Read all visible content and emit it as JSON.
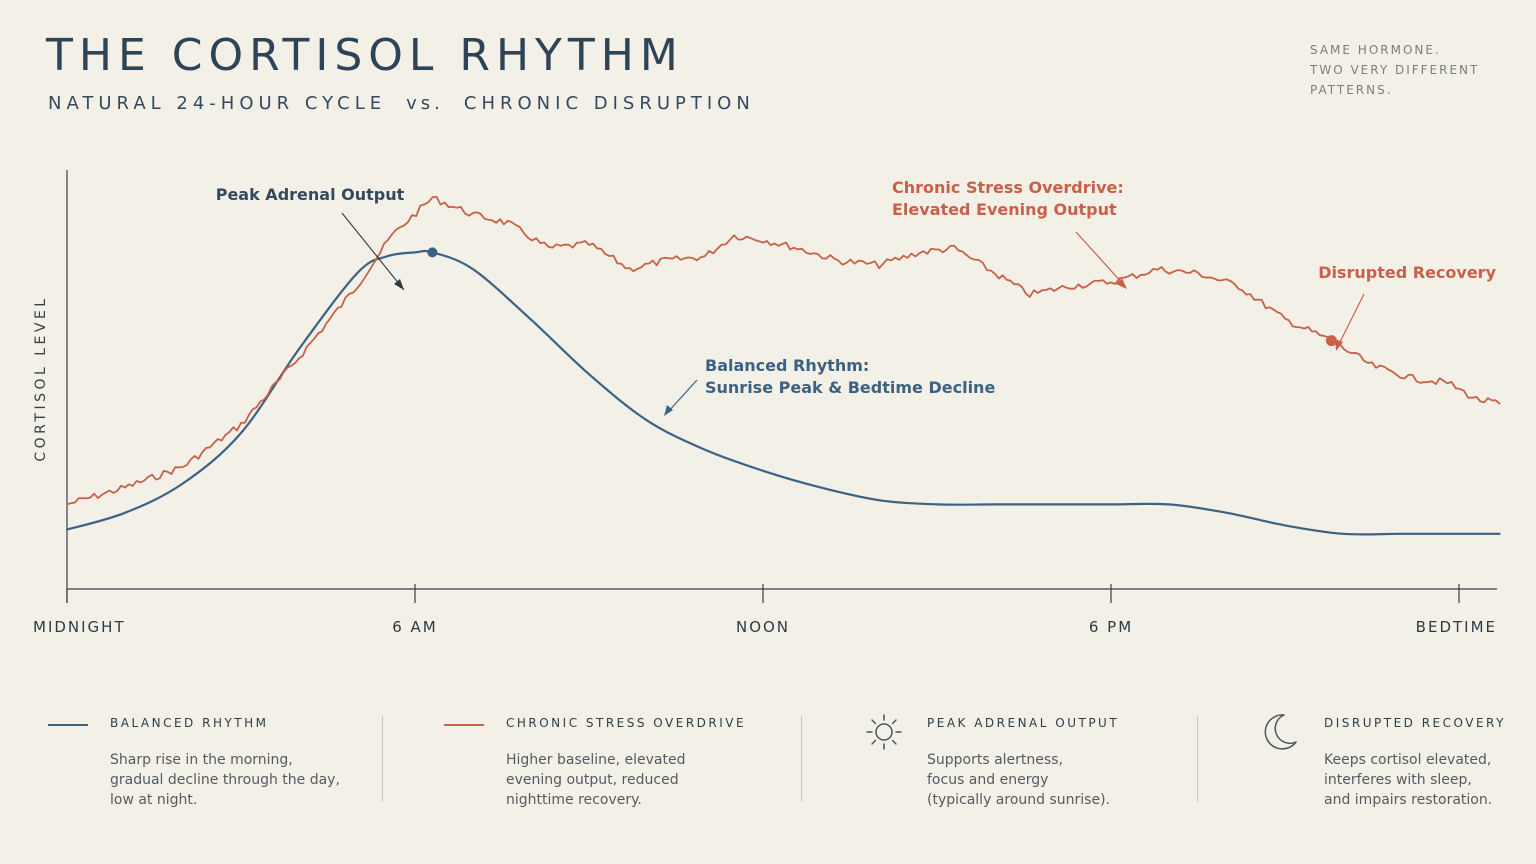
{
  "header": {
    "title": "THE CORTISOL RHYTHM",
    "subtitle_left": "NATURAL 24-HOUR CYCLE",
    "subtitle_vs": "vs.",
    "subtitle_right": "CHRONIC DISRUPTION",
    "tagline": [
      "SAME HORMONE.",
      "TWO VERY DIFFERENT",
      "PATTERNS."
    ]
  },
  "colors": {
    "balanced": "#3c6283",
    "chronic": "#c8604a",
    "axis": "#3a3f44",
    "background": "#f3f0e7"
  },
  "chart_data": {
    "type": "line",
    "ylabel": "CORTISOL LEVEL",
    "xlabel": "",
    "x_ticks": [
      "MIDNIGHT",
      "6 AM",
      "NOON",
      "6 PM",
      "BEDTIME"
    ],
    "x_tick_hours": [
      0,
      6,
      12,
      18,
      24
    ],
    "xlim": [
      0,
      24.7
    ],
    "ylim": [
      0,
      100
    ],
    "grid": false,
    "series": [
      {
        "name": "BALANCED RHYTHM",
        "color": "#3c6283",
        "x": [
          0,
          1,
          2,
          3,
          4,
          5,
          5.5,
          6,
          6.3,
          7,
          8,
          9,
          10,
          11,
          12,
          13,
          14,
          15,
          16,
          17,
          18,
          19,
          20,
          21,
          22,
          23,
          24,
          24.7
        ],
        "y": [
          7,
          11,
          18,
          30,
          50,
          68,
          72,
          73,
          73,
          69,
          57,
          44,
          33,
          26,
          21,
          17,
          14,
          13,
          13,
          13,
          13,
          13,
          11,
          8,
          6,
          6,
          6,
          6
        ]
      },
      {
        "name": "CHRONIC STRESS OVERDRIVE",
        "color": "#c8604a",
        "x": [
          0,
          1,
          2,
          3,
          4,
          5,
          5.6,
          6.3,
          7,
          7.6,
          8.3,
          9,
          9.7,
          10.3,
          11,
          11.5,
          12,
          12.6,
          13.3,
          14,
          14.7,
          15.3,
          16,
          16.6,
          17.3,
          18,
          18.3,
          18.8,
          19.5,
          20.2,
          21,
          21.8,
          22.5,
          23.2,
          23.8,
          24.3,
          24.7
        ],
        "y": [
          13,
          17,
          22,
          32,
          48,
          65,
          77,
          86,
          82,
          80,
          74,
          75,
          69,
          71,
          72,
          77,
          76,
          74,
          71,
          70,
          73,
          74,
          68,
          63,
          65,
          66,
          67,
          69,
          68,
          65,
          57,
          52,
          46,
          43,
          42,
          38,
          37
        ]
      }
    ],
    "annotations": [
      {
        "text": "Peak Adrenal Output",
        "series": "BALANCED RHYTHM",
        "x": 6.3,
        "y": 73
      },
      {
        "text": "Balanced Rhythm:\nSunrise Peak & Bedtime Decline",
        "series": "BALANCED RHYTHM",
        "x": 10.3,
        "y": 41
      },
      {
        "text": "Chronic Stress Overdrive:\nElevated Evening Output",
        "series": "CHRONIC STRESS OVERDRIVE",
        "x": 18.2,
        "y": 67
      },
      {
        "text": "Disrupted Recovery",
        "series": "CHRONIC STRESS OVERDRIVE",
        "x": 21.8,
        "y": 52
      }
    ]
  },
  "legend": [
    {
      "title": "BALANCED RHYTHM",
      "icon": "line-swatch-blue",
      "desc": [
        "Sharp rise in the morning,",
        "gradual decline through the day,",
        "low at night."
      ]
    },
    {
      "title": "CHRONIC STRESS OVERDRIVE",
      "icon": "line-swatch-red",
      "desc": [
        "Higher baseline, elevated",
        "evening output, reduced",
        "nighttime recovery."
      ]
    },
    {
      "title": "PEAK ADRENAL OUTPUT",
      "icon": "sun-icon",
      "desc": [
        "Supports alertness,",
        "focus and energy",
        "(typically around sunrise)."
      ]
    },
    {
      "title": "DISRUPTED RECOVERY",
      "icon": "moon-icon",
      "desc": [
        "Keeps cortisol elevated,",
        "interferes with sleep,",
        "and impairs restoration."
      ]
    }
  ]
}
